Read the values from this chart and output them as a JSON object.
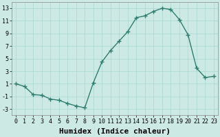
{
  "x": [
    0,
    1,
    2,
    3,
    4,
    5,
    6,
    7,
    8,
    9,
    10,
    11,
    12,
    13,
    14,
    15,
    16,
    17,
    18,
    19,
    20,
    21,
    22,
    23
  ],
  "y": [
    1.0,
    0.6,
    -0.7,
    -0.8,
    -1.4,
    -1.6,
    -2.1,
    -2.5,
    -2.8,
    1.2,
    4.5,
    6.3,
    7.8,
    9.3,
    11.5,
    11.8,
    12.5,
    13.0,
    12.8,
    11.2,
    8.8,
    3.5,
    2.0,
    2.2
  ],
  "line_color": "#2e7d6e",
  "marker": "+",
  "marker_size": 4,
  "marker_edge_width": 1.0,
  "bg_color": "#cce9e4",
  "grid_color": "#a8d8d0",
  "xlabel": "Humidex (Indice chaleur)",
  "xlabel_fontsize": 8,
  "xlabel_fontweight": "bold",
  "ylim": [
    -4,
    14
  ],
  "xlim": [
    -0.5,
    23.5
  ],
  "yticks": [
    -3,
    -1,
    1,
    3,
    5,
    7,
    9,
    11,
    13
  ],
  "xticks": [
    0,
    1,
    2,
    3,
    4,
    5,
    6,
    7,
    8,
    9,
    10,
    11,
    12,
    13,
    14,
    15,
    16,
    17,
    18,
    19,
    20,
    21,
    22,
    23
  ],
  "tick_fontsize": 6,
  "line_width": 1.0,
  "fig_width": 3.2,
  "fig_height": 2.0,
  "dpi": 100
}
